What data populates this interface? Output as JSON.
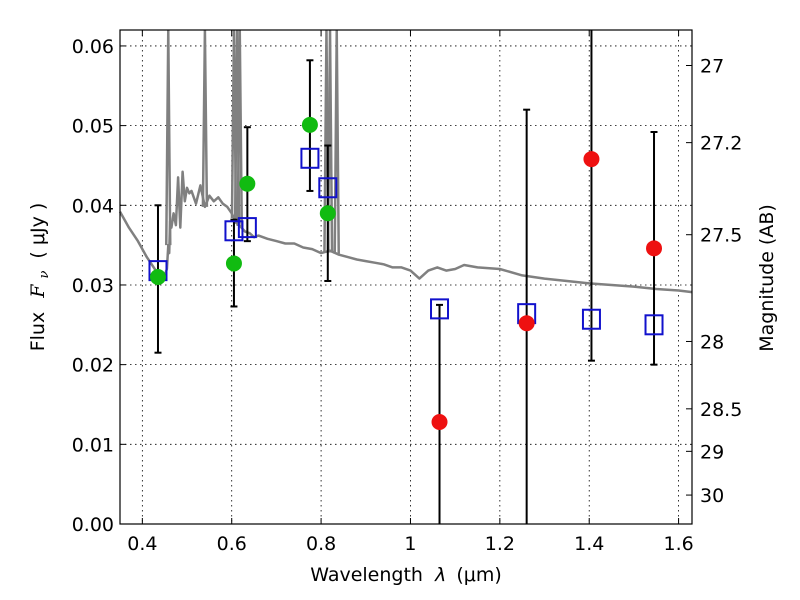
{
  "chart_data": {
    "type": "scatter",
    "xlabel": {
      "prefix": "Wavelength",
      "symbol": "λ",
      "unit": "(μm)"
    },
    "ylabel": {
      "prefix": "Flux",
      "symbol": "F",
      "subscript": "ν",
      "unit": "( μJy )"
    },
    "y2label": "Magnitude (AB)",
    "xlim": [
      0.35,
      1.63
    ],
    "ylim": [
      0.0,
      0.062
    ],
    "xticks": [
      0.4,
      0.6,
      0.8,
      1.0,
      1.2,
      1.4,
      1.6
    ],
    "xtick_labels": [
      "0.4",
      "0.6",
      "0.8",
      "1",
      "1.2",
      "1.4",
      "1.6"
    ],
    "yticks": [
      0.0,
      0.01,
      0.02,
      0.03,
      0.04,
      0.05,
      0.06
    ],
    "ytick_labels": [
      "0.00",
      "0.01",
      "0.02",
      "0.03",
      "0.04",
      "0.05",
      "0.06"
    ],
    "y2_ticks": [
      {
        "label": "27",
        "mag": 27.0
      },
      {
        "label": "27.2",
        "mag": 27.2
      },
      {
        "label": "27.5",
        "mag": 27.5
      },
      {
        "label": "28",
        "mag": 28.0
      },
      {
        "label": "28.5",
        "mag": 28.5
      },
      {
        "label": "29",
        "mag": 29.0
      },
      {
        "label": "30",
        "mag": 30.0
      }
    ],
    "grid": true,
    "colors": {
      "model": "#808080",
      "optical": "#11bb11",
      "nir": "#ee1111",
      "model_bands": "#1111cc",
      "errorbar": "#000000"
    },
    "model_sed": {
      "x": [
        0.35,
        0.37,
        0.39,
        0.41,
        0.43,
        0.445,
        0.45,
        0.455,
        0.458,
        0.46,
        0.462,
        0.465,
        0.47,
        0.475,
        0.48,
        0.485,
        0.49,
        0.495,
        0.5,
        0.505,
        0.51,
        0.52,
        0.53,
        0.54,
        0.55,
        0.56,
        0.57,
        0.58,
        0.59,
        0.6,
        0.61,
        0.62,
        0.63,
        0.64,
        0.65,
        0.66,
        0.68,
        0.7,
        0.72,
        0.74,
        0.76,
        0.78,
        0.8,
        0.82,
        0.84,
        0.86,
        0.88,
        0.9,
        0.92,
        0.94,
        0.96,
        0.98,
        1.0,
        1.02,
        1.04,
        1.06,
        1.08,
        1.1,
        1.12,
        1.15,
        1.2,
        1.25,
        1.3,
        1.35,
        1.4,
        1.45,
        1.5,
        1.55,
        1.6,
        1.63
      ],
      "y": [
        0.0392,
        0.0372,
        0.0355,
        0.0335,
        0.0318,
        0.031,
        0.0312,
        0.032,
        0.035,
        0.034,
        0.038,
        0.0372,
        0.039,
        0.0375,
        0.0435,
        0.0372,
        0.0442,
        0.0405,
        0.0422,
        0.0415,
        0.0418,
        0.0402,
        0.0425,
        0.0398,
        0.0412,
        0.0405,
        0.041,
        0.0402,
        0.0398,
        0.039,
        0.0378,
        0.0373,
        0.0367,
        0.0365,
        0.036,
        0.0362,
        0.0358,
        0.0355,
        0.0352,
        0.0352,
        0.0347,
        0.0345,
        0.034,
        0.0343,
        0.0338,
        0.0335,
        0.0332,
        0.033,
        0.0328,
        0.0326,
        0.0322,
        0.0322,
        0.0318,
        0.0308,
        0.0318,
        0.0322,
        0.0318,
        0.032,
        0.0325,
        0.0322,
        0.032,
        0.0312,
        0.0308,
        0.0305,
        0.0302,
        0.03,
        0.0298,
        0.0295,
        0.0293,
        0.0291
      ],
      "emission_lines": [
        {
          "x": 0.458,
          "top": 0.062
        },
        {
          "x": 0.54,
          "top": 0.062
        },
        {
          "x": 0.605,
          "top": 0.062
        },
        {
          "x": 0.612,
          "top": 0.062
        },
        {
          "x": 0.618,
          "top": 0.062
        },
        {
          "x": 0.812,
          "top": 0.062
        },
        {
          "x": 0.82,
          "top": 0.062
        },
        {
          "x": 0.835,
          "top": 0.062
        }
      ]
    },
    "model_bands": {
      "x": [
        0.435,
        0.605,
        0.635,
        0.775,
        0.815,
        1.065,
        1.26,
        1.405,
        1.545
      ],
      "y": [
        0.0318,
        0.0368,
        0.0372,
        0.0459,
        0.0422,
        0.027,
        0.0264,
        0.0257,
        0.025
      ]
    },
    "observed_optical": {
      "x": [
        0.435,
        0.605,
        0.635,
        0.775,
        0.815
      ],
      "y": [
        0.031,
        0.0327,
        0.0427,
        0.0501,
        0.039
      ],
      "err_low": [
        0.0215,
        0.0273,
        0.0355,
        0.0418,
        0.0305
      ],
      "err_high": [
        0.04,
        0.0382,
        0.0498,
        0.0582,
        0.0475
      ]
    },
    "observed_nir": {
      "x": [
        1.065,
        1.26,
        1.405,
        1.545
      ],
      "y": [
        0.0128,
        0.0252,
        0.0458,
        0.0346
      ],
      "err_low": [
        0.0,
        0.0,
        0.0205,
        0.02
      ],
      "err_high": [
        0.0275,
        0.052,
        0.062,
        0.0492
      ]
    }
  }
}
